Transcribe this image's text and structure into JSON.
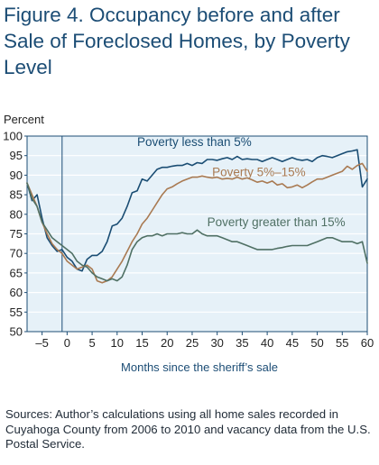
{
  "figure_title": "Figure 4. Occupancy before and after Sale of Foreclosed Homes, by Poverty Level",
  "sources": "Sources: Author’s calculations using all home sales recorded in Cuyahoga County from 2006 to 2010 and vacancy data from the U.S. Postal Service.",
  "colors": {
    "title": "#1c4d75",
    "axis": "#1c4d75",
    "background": "#e6f1f8",
    "grid": "#ffffff"
  },
  "chart_data": {
    "type": "line",
    "title": "Figure 4. Occupancy before and after Sale of Foreclosed Homes, by Poverty Level",
    "xlabel": "Months since the sheriff’s sale",
    "ylabel": "Percent",
    "xlim": [
      -8,
      60
    ],
    "ylim": [
      50,
      100
    ],
    "x_ticks": [
      -5,
      0,
      5,
      10,
      15,
      20,
      25,
      30,
      35,
      40,
      45,
      50,
      55,
      60
    ],
    "x_tick_labels": [
      "–5",
      "0",
      "5",
      "10",
      "15",
      "20",
      "25",
      "30",
      "35",
      "40",
      "45",
      "50",
      "55",
      "60"
    ],
    "y_ticks": [
      50,
      55,
      60,
      65,
      70,
      75,
      80,
      85,
      90,
      95,
      100
    ],
    "grid": true,
    "vertical_reference_line_x": -1,
    "series": [
      {
        "name": "Poverty less than 5%",
        "color": "#1a4d73",
        "x": [
          -8,
          -7,
          -6,
          -5,
          -4,
          -3,
          -2,
          -1,
          0,
          1,
          2,
          3,
          4,
          5,
          6,
          7,
          8,
          9,
          10,
          11,
          12,
          13,
          14,
          15,
          16,
          17,
          18,
          19,
          20,
          21,
          22,
          23,
          24,
          25,
          26,
          27,
          28,
          29,
          30,
          31,
          32,
          33,
          34,
          35,
          36,
          37,
          38,
          39,
          40,
          41,
          42,
          43,
          44,
          45,
          46,
          47,
          48,
          49,
          50,
          51,
          52,
          53,
          54,
          55,
          56,
          57,
          58,
          59,
          60
        ],
        "y": [
          88,
          83.5,
          85,
          79,
          74,
          72,
          70.5,
          71,
          69,
          68,
          66,
          65.5,
          68.5,
          69.5,
          69.5,
          70.5,
          73,
          77,
          77.5,
          79,
          82,
          85.5,
          86,
          89,
          88.5,
          90,
          91.5,
          92,
          92,
          92.3,
          92.5,
          92.5,
          93,
          92.5,
          93.2,
          93,
          94,
          94,
          93.8,
          94.2,
          94.5,
          94,
          94.8,
          94,
          94.2,
          94,
          94,
          93.5,
          94,
          94.5,
          94,
          93.5,
          94,
          94.5,
          94,
          93.8,
          94,
          93.5,
          94.5,
          95,
          94.8,
          94.5,
          95,
          95.5,
          96,
          96.2,
          96.5,
          87,
          89
        ]
      },
      {
        "name": "Poverty 5%–15%",
        "color": "#a97a52",
        "x": [
          -8,
          -7,
          -6,
          -5,
          -4,
          -3,
          -2,
          -1,
          0,
          1,
          2,
          3,
          4,
          5,
          6,
          7,
          8,
          9,
          10,
          11,
          12,
          13,
          14,
          15,
          16,
          17,
          18,
          19,
          20,
          21,
          22,
          23,
          24,
          25,
          26,
          27,
          28,
          29,
          30,
          31,
          32,
          33,
          34,
          35,
          36,
          37,
          38,
          39,
          40,
          41,
          42,
          43,
          44,
          45,
          46,
          47,
          48,
          49,
          50,
          51,
          52,
          53,
          54,
          55,
          56,
          57,
          58,
          59,
          60
        ],
        "y": [
          88,
          85,
          82,
          78,
          75,
          72.5,
          71,
          70,
          68,
          67,
          66,
          66.5,
          67,
          66,
          63,
          62.5,
          63,
          64,
          66,
          68,
          70.5,
          73,
          75,
          77.5,
          79,
          81,
          83,
          85,
          86.5,
          87,
          87.8,
          88.5,
          89,
          89.5,
          89.5,
          89.8,
          89.5,
          89.3,
          89.5,
          89,
          89.2,
          89,
          89.5,
          89,
          89.3,
          88.8,
          88.2,
          88.5,
          88,
          88.5,
          87.5,
          87.8,
          86.8,
          87,
          87.5,
          86.8,
          87.5,
          88.3,
          89,
          89,
          89.5,
          90,
          90.5,
          91,
          92.3,
          91.5,
          92.5,
          93,
          91
        ]
      },
      {
        "name": "Poverty greater than 15%",
        "color": "#4f7064",
        "x": [
          -8,
          -7,
          -6,
          -5,
          -4,
          -3,
          -2,
          -1,
          0,
          1,
          2,
          3,
          4,
          5,
          6,
          7,
          8,
          9,
          10,
          11,
          12,
          13,
          14,
          15,
          16,
          17,
          18,
          19,
          20,
          21,
          22,
          23,
          24,
          25,
          26,
          27,
          28,
          29,
          30,
          31,
          32,
          33,
          34,
          35,
          36,
          37,
          38,
          39,
          40,
          41,
          42,
          43,
          44,
          45,
          46,
          47,
          48,
          49,
          50,
          51,
          52,
          53,
          54,
          55,
          56,
          57,
          58,
          59,
          60
        ],
        "y": [
          88,
          84,
          82,
          78,
          76,
          74,
          73,
          72,
          71,
          70,
          68,
          67,
          66.5,
          65,
          64,
          63.5,
          63,
          63.5,
          63,
          64,
          67,
          71,
          73,
          74,
          74.5,
          74.5,
          75,
          74.5,
          75,
          75,
          75,
          75.3,
          75,
          75,
          76,
          75,
          74.5,
          74.5,
          74.5,
          74,
          73.5,
          73,
          73,
          72.5,
          72,
          71.5,
          71,
          71,
          71,
          71,
          71.3,
          71.5,
          71.8,
          72,
          72,
          72,
          72,
          72.5,
          73,
          73.5,
          74,
          74,
          73.5,
          73,
          73,
          73,
          72.5,
          73,
          67.5
        ]
      }
    ],
    "annotations": [
      {
        "text": "Poverty less than 5%",
        "series": 0,
        "x": 14,
        "y": 97.5,
        "color": "#1a4d73"
      },
      {
        "text": "Poverty 5%–15%",
        "series": 1,
        "x": 29,
        "y": 89.8,
        "color": "#a97a52"
      },
      {
        "text": "Poverty greater than 15%",
        "series": 2,
        "x": 28,
        "y": 77,
        "color": "#4f7064"
      }
    ]
  }
}
